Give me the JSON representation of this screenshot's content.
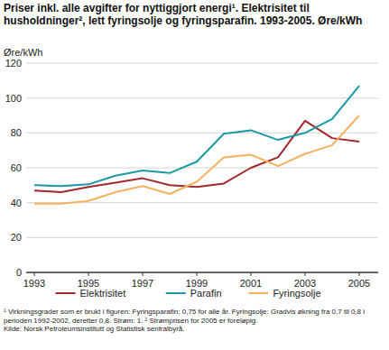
{
  "chart_data": {
    "type": "line",
    "title": "Priser inkl. alle avgifter for nyttiggjort energi¹. Elektrisitet til husholdninger², lett fyringsolje og fyringsparafin. 1993-2005. Øre/kWh",
    "y_label": "Øre/kWh",
    "x": [
      1993,
      1994,
      1995,
      1996,
      1997,
      1998,
      1999,
      2000,
      2001,
      2002,
      2003,
      2004,
      2005
    ],
    "series": [
      {
        "name": "Elektrisitet",
        "color": "#a3282d",
        "values": [
          47,
          46,
          49,
          51.5,
          54,
          50,
          49,
          51,
          60,
          66,
          87,
          77,
          75
        ]
      },
      {
        "name": "Parafin",
        "color": "#1b99a5",
        "values": [
          50,
          49.5,
          50.5,
          55.5,
          58.5,
          57,
          63.5,
          79.5,
          81.5,
          76,
          80,
          88,
          107
        ]
      },
      {
        "name": "Fyringsolje",
        "color": "#f3b25f",
        "values": [
          39.5,
          39.5,
          41,
          46,
          49.5,
          45,
          52,
          66,
          67.5,
          61,
          68,
          73,
          90
        ]
      }
    ],
    "xlim": [
      1992.7,
      2005.7
    ],
    "xticks": [
      1993,
      1995,
      1997,
      1999,
      2001,
      2003,
      2005
    ],
    "ylim": [
      0,
      120
    ],
    "yticks": [
      0,
      20,
      40,
      60,
      80,
      100,
      120
    ],
    "grid": true,
    "legend": "bottom",
    "footnotes": [
      "¹ Virkningsgrader som er brukt i figuren:  Fyringsparafin: 0,75 for alle år. Fyringsolje: Gradvis økning fra 0,7 til 0,8 i perioden 1992-2002, deretter 0,8. Strøm: 1.  ² Strømprisen for 2005 er foreløpig.",
      "Kilde: Norsk Petroleumsinstitutt og Statistisk sentralbyrå."
    ]
  }
}
